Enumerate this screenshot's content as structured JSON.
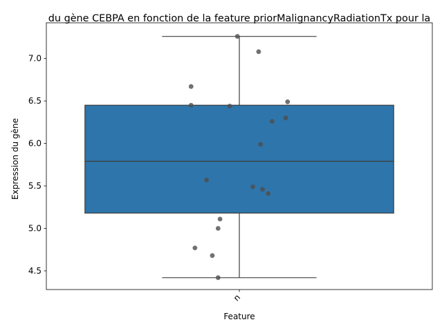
{
  "chart_data": {
    "type": "box",
    "title": "du gène CEBPA en fonction de la feature priorMalignancyRadiationTx pour la",
    "xlabel": "Feature",
    "ylabel": "Expression du gène",
    "categories": [
      "n"
    ],
    "ylim": [
      4.28,
      7.42
    ],
    "yticks": [
      4.5,
      5.0,
      5.5,
      6.0,
      6.5,
      7.0
    ],
    "ytick_labels": [
      "4.5",
      "5.0",
      "5.5",
      "6.0",
      "6.5",
      "7.0"
    ],
    "grid": false,
    "box": {
      "whisker_low": 4.42,
      "q1": 5.18,
      "median": 5.79,
      "q3": 6.45,
      "whisker_high": 7.26,
      "color": "#2e75ab",
      "edge_color": "#3d3d3d"
    },
    "points": {
      "color": "#4d4d4d",
      "values": [
        7.26,
        7.08,
        6.67,
        6.49,
        6.45,
        6.44,
        6.3,
        6.26,
        5.99,
        5.57,
        5.49,
        5.46,
        5.41,
        5.11,
        5.0,
        4.77,
        4.68,
        4.42
      ],
      "jitter": [
        -0.01,
        0.1,
        -0.25,
        0.25,
        -0.25,
        -0.05,
        0.24,
        0.17,
        0.11,
        -0.17,
        0.07,
        0.12,
        0.15,
        -0.1,
        -0.11,
        -0.23,
        -0.14,
        -0.11
      ]
    }
  }
}
